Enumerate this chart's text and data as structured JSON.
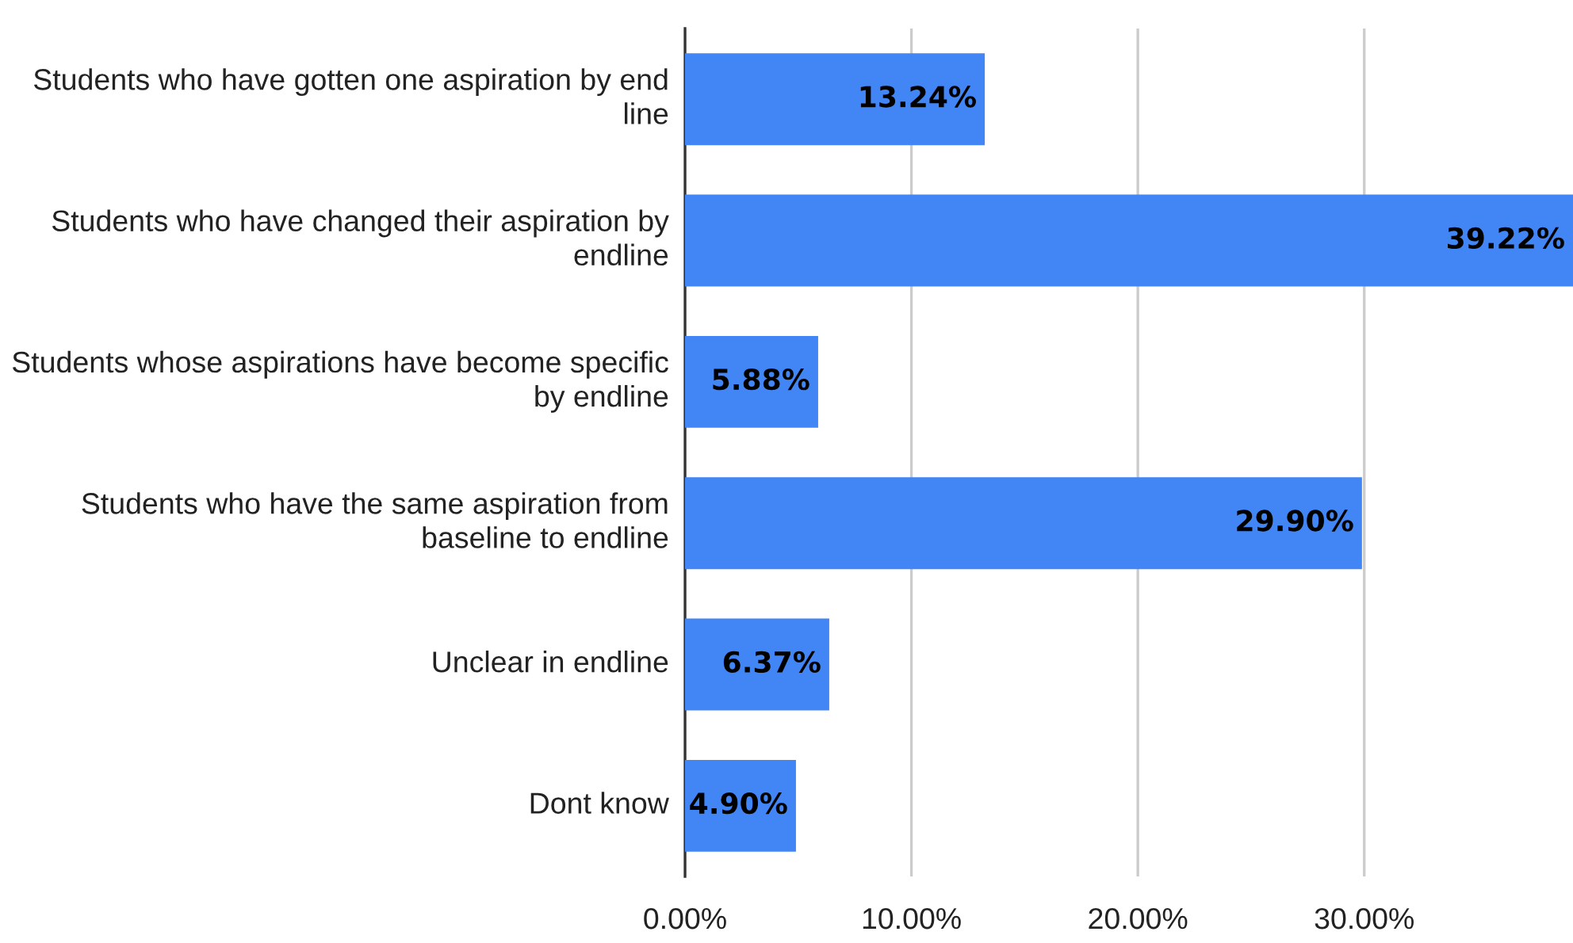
{
  "chart_data": {
    "type": "bar",
    "orientation": "horizontal",
    "categories": [
      "Students who have gotten one aspiration by end line",
      "Students who have changed their aspiration by endline",
      "Students whose aspirations have become specific by endline",
      "Students who have the same aspiration from baseline to endline",
      "Unclear in endline",
      "Dont know"
    ],
    "values": [
      13.24,
      39.22,
      5.88,
      29.9,
      6.37,
      4.9
    ],
    "value_labels": [
      "13.24%",
      "39.22%",
      "5.88%",
      "29.90%",
      "6.37%",
      "4.90%"
    ],
    "color": "#4285f4",
    "xlim": [
      0,
      39.22
    ],
    "xticks": [
      {
        "value": 0,
        "label": "0.00%"
      },
      {
        "value": 10,
        "label": "10.00%"
      },
      {
        "value": 20,
        "label": "20.00%"
      },
      {
        "value": 30,
        "label": "30.00%"
      }
    ],
    "grid": "x",
    "legend": false
  }
}
